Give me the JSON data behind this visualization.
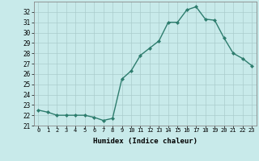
{
  "x": [
    0,
    1,
    2,
    3,
    4,
    5,
    6,
    7,
    8,
    9,
    10,
    11,
    12,
    13,
    14,
    15,
    16,
    17,
    18,
    19,
    20,
    21,
    22,
    23
  ],
  "y": [
    22.5,
    22.3,
    22.0,
    22.0,
    22.0,
    22.0,
    21.8,
    21.5,
    21.7,
    25.5,
    26.3,
    27.8,
    28.5,
    29.2,
    31.0,
    31.0,
    32.2,
    32.5,
    31.3,
    31.2,
    29.5,
    28.0,
    27.5,
    26.8
  ],
  "line_color": "#2e7d6e",
  "marker": "D",
  "marker_size": 2.0,
  "bg_color": "#c8eaea",
  "grid_color": "#aacccc",
  "xlabel": "Humidex (Indice chaleur)",
  "xlim": [
    -0.5,
    23.5
  ],
  "ylim": [
    21.0,
    33.0
  ],
  "yticks": [
    21,
    22,
    23,
    24,
    25,
    26,
    27,
    28,
    29,
    30,
    31,
    32
  ],
  "xticks": [
    0,
    1,
    2,
    3,
    4,
    5,
    6,
    7,
    8,
    9,
    10,
    11,
    12,
    13,
    14,
    15,
    16,
    17,
    18,
    19,
    20,
    21,
    22,
    23
  ],
  "xlabel_fontsize": 6.5,
  "ytick_fontsize": 5.5,
  "xtick_fontsize": 5.0,
  "line_width": 1.0
}
